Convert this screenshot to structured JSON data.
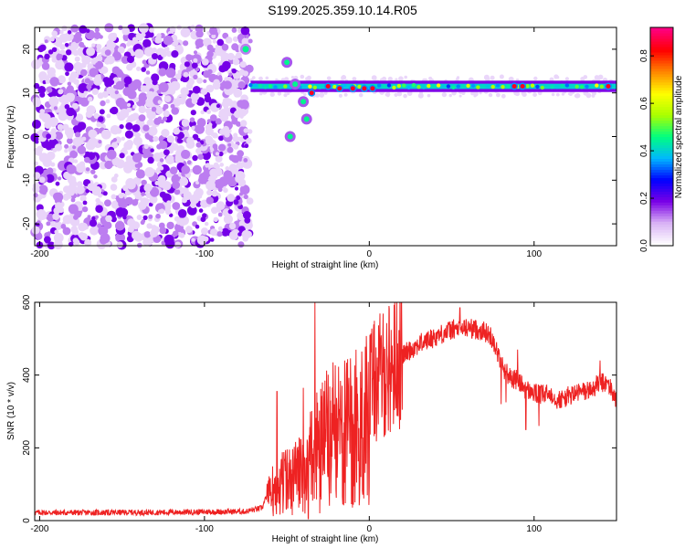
{
  "title": "S199.2025.359.10.14.R05",
  "chart_data": [
    {
      "type": "heatmap",
      "xlabel": "Height of straight line (km)",
      "ylabel": "Frequency (Hz)",
      "xlim": [
        -203,
        150
      ],
      "ylim": [
        -25,
        25
      ],
      "xticks": [
        -200,
        -100,
        0,
        100
      ],
      "yticks": [
        -20,
        -10,
        0,
        10,
        20
      ],
      "colorbar": {
        "label": "Normalized spectral amplitude",
        "range": [
          0,
          0.92
        ],
        "ticks": [
          0.0,
          0.2,
          0.4,
          0.6,
          0.8
        ],
        "colors": [
          "#ffffff",
          "#d9b3f5",
          "#7a00e6",
          "#0000ff",
          "#00b7ff",
          "#00ff80",
          "#aaff00",
          "#ffff00",
          "#ff8800",
          "#ff0000",
          "#ff0080"
        ]
      },
      "features": {
        "noise_region_x": [
          -203,
          -72
        ],
        "noise_level": 0.15,
        "signal_frequency_hz": 11.5,
        "signal_start_x": -72,
        "signal_level": 0.4,
        "early_burst": {
          "x": -75,
          "freq_hz": 20,
          "level": 0.45
        },
        "branch_descending": [
          {
            "x": -50,
            "freq_hz": 17
          },
          {
            "x": -45,
            "freq_hz": 12
          },
          {
            "x": -40,
            "freq_hz": 8
          },
          {
            "x": -38,
            "freq_hz": 4
          },
          {
            "x": -48,
            "freq_hz": 0
          }
        ],
        "hot_spots": [
          {
            "x": -35,
            "freq_hz": 10
          },
          {
            "x": -25,
            "freq_hz": 11.5
          },
          {
            "x": -18,
            "freq_hz": 11
          },
          {
            "x": -10,
            "freq_hz": 11
          },
          {
            "x": -3,
            "freq_hz": 11
          },
          {
            "x": 2,
            "freq_hz": 11
          },
          {
            "x": 88,
            "freq_hz": 11.5
          },
          {
            "x": 93,
            "freq_hz": 11.5
          },
          {
            "x": 145,
            "freq_hz": 11.5
          }
        ]
      }
    },
    {
      "type": "line",
      "xlabel": "Height of straight line (km)",
      "ylabel": "SNR (10 * v/v)",
      "xlim": [
        -203,
        150
      ],
      "ylim": [
        0,
        600
      ],
      "xticks": [
        -200,
        -100,
        0,
        100
      ],
      "yticks": [
        0,
        200,
        400,
        600
      ],
      "color": "#ee2222",
      "series": [
        {
          "name": "SNR",
          "envelope_x": [
            -203,
            -160,
            -120,
            -75,
            -65,
            -60,
            -55,
            -50,
            -45,
            -40,
            -35,
            -30,
            -25,
            -20,
            -15,
            -10,
            -5,
            0,
            10,
            20,
            30,
            40,
            50,
            60,
            65,
            70,
            75,
            80,
            85,
            90,
            95,
            100,
            105,
            110,
            115,
            120,
            125,
            130,
            135,
            140,
            145,
            150
          ],
          "envelope_y": [
            22,
            22,
            23,
            25,
            35,
            95,
            130,
            140,
            150,
            170,
            220,
            260,
            290,
            300,
            305,
            320,
            345,
            370,
            410,
            455,
            485,
            505,
            525,
            530,
            525,
            520,
            500,
            430,
            395,
            385,
            360,
            350,
            345,
            350,
            330,
            340,
            350,
            355,
            360,
            380,
            375,
            330
          ],
          "spikes": [
            {
              "x": -56,
              "y": 355
            },
            {
              "x": -40,
              "y": 365
            },
            {
              "x": -33,
              "y": 600
            },
            {
              "x": -30,
              "y": 520
            },
            {
              "x": -22,
              "y": 435
            },
            {
              "x": -15,
              "y": 440
            },
            {
              "x": 55,
              "y": 585
            },
            {
              "x": 90,
              "y": 470
            },
            {
              "x": 140,
              "y": 440
            }
          ],
          "dips": [
            {
              "x": -37,
              "y": 5
            },
            {
              "x": -30,
              "y": 20
            },
            {
              "x": 80,
              "y": 320
            },
            {
              "x": 83,
              "y": 325
            },
            {
              "x": 95,
              "y": 250
            },
            {
              "x": 103,
              "y": 260
            }
          ]
        }
      ]
    }
  ]
}
